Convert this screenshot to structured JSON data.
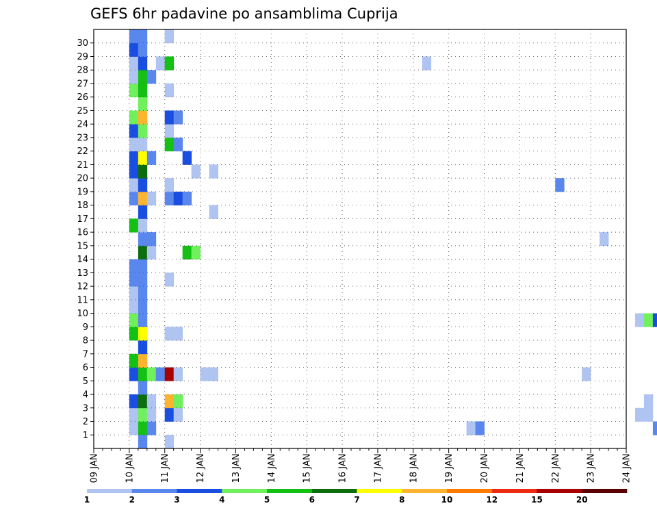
{
  "chart_data": {
    "type": "heatmap",
    "title": "GEFS 6hr padavine po ansamblima Cuprija",
    "x_tick_labels": [
      "09 JAN",
      "10 JAN",
      "11 JAN",
      "12 JAN",
      "13 JAN",
      "14 JAN",
      "15 JAN",
      "16 JAN",
      "17 JAN",
      "18 JAN",
      "19 JAN",
      "20 JAN",
      "21 JAN",
      "22 JAN",
      "23 JAN",
      "24 JAN"
    ],
    "y_tick_labels": [
      "1",
      "2",
      "3",
      "4",
      "5",
      "6",
      "7",
      "8",
      "9",
      "10",
      "11",
      "12",
      "13",
      "14",
      "15",
      "16",
      "17",
      "18",
      "19",
      "20",
      "21",
      "22",
      "23",
      "24",
      "25",
      "26",
      "27",
      "28",
      "29",
      "30"
    ],
    "x_range_days": [
      0,
      15
    ],
    "y_range": [
      0,
      30
    ],
    "time_step_days": 0.25,
    "ensemble_members": 31,
    "grid": "dotted",
    "colorbar": {
      "labels": [
        "1",
        "2",
        "3",
        "4",
        "5",
        "6",
        "7",
        "8",
        "10",
        "12",
        "15",
        "20"
      ],
      "colors": [
        "#b0c4f2",
        "#5a87ee",
        "#1a4ee0",
        "#6ff05c",
        "#13c013",
        "#0b6d0b",
        "#ffff00",
        "#ffb430",
        "#ff7a00",
        "#ee2a10",
        "#a80000",
        "#5a0000"
      ]
    },
    "cells": [
      {
        "m": 1,
        "s": [
          [
            4,
            0
          ],
          [
            5,
            4
          ],
          [
            6,
            1
          ],
          [
            42,
            0
          ],
          [
            43,
            1
          ],
          [
            63,
            1
          ],
          [
            69,
            0
          ],
          [
            70,
            1
          ],
          [
            72,
            5
          ],
          [
            73,
            3
          ],
          [
            74,
            0
          ],
          [
            78,
            0
          ],
          [
            80,
            1
          ],
          [
            81,
            1
          ]
        ]
      },
      {
        "m": 2,
        "s": [
          [
            4,
            0
          ],
          [
            5,
            3
          ],
          [
            6,
            0
          ],
          [
            8,
            2
          ],
          [
            9,
            0
          ],
          [
            61,
            0
          ],
          [
            62,
            0
          ],
          [
            76,
            0
          ],
          [
            77,
            7
          ],
          [
            78,
            7
          ]
        ]
      },
      {
        "m": 3,
        "s": [
          [
            4,
            2
          ],
          [
            5,
            5
          ],
          [
            6,
            0
          ],
          [
            8,
            7
          ],
          [
            9,
            3
          ],
          [
            62,
            0
          ],
          [
            69,
            0
          ],
          [
            70,
            1
          ],
          [
            71,
            2
          ],
          [
            72,
            1
          ],
          [
            73,
            2
          ],
          [
            74,
            2
          ]
        ]
      },
      {
        "m": 4,
        "s": [
          [
            5,
            1
          ],
          [
            75,
            0
          ],
          [
            76,
            1
          ],
          [
            82,
            5
          ],
          [
            83,
            7
          ]
        ]
      },
      {
        "m": 5,
        "s": [
          [
            4,
            2
          ],
          [
            5,
            4
          ],
          [
            6,
            3
          ],
          [
            7,
            1
          ],
          [
            8,
            10
          ],
          [
            9,
            0
          ],
          [
            12,
            0
          ],
          [
            13,
            0
          ],
          [
            55,
            0
          ],
          [
            80,
            0
          ],
          [
            81,
            0
          ],
          [
            82,
            1
          ],
          [
            83,
            1
          ]
        ]
      },
      {
        "m": 6,
        "s": [
          [
            4,
            4
          ],
          [
            5,
            7
          ]
        ]
      },
      {
        "m": 7,
        "s": [
          [
            5,
            2
          ],
          [
            80,
            0
          ],
          [
            83,
            1
          ]
        ]
      },
      {
        "m": 8,
        "s": [
          [
            4,
            4
          ],
          [
            5,
            6
          ],
          [
            8,
            0
          ],
          [
            9,
            0
          ],
          [
            69,
            1
          ],
          [
            70,
            2
          ],
          [
            71,
            2
          ],
          [
            72,
            3
          ],
          [
            73,
            4
          ],
          [
            74,
            3
          ],
          [
            75,
            4
          ],
          [
            76,
            1
          ],
          [
            77,
            0
          ]
        ]
      },
      {
        "m": 9,
        "s": [
          [
            4,
            3
          ],
          [
            5,
            1
          ],
          [
            61,
            0
          ],
          [
            62,
            3
          ],
          [
            63,
            2
          ],
          [
            64,
            0
          ],
          [
            65,
            0
          ]
        ]
      },
      {
        "m": 10,
        "s": [
          [
            4,
            0
          ],
          [
            5,
            1
          ]
        ]
      },
      {
        "m": 11,
        "s": [
          [
            4,
            0
          ],
          [
            5,
            1
          ]
        ]
      },
      {
        "m": 12,
        "s": [
          [
            4,
            1
          ],
          [
            5,
            1
          ],
          [
            8,
            0
          ],
          [
            75,
            0
          ],
          [
            76,
            0
          ],
          [
            77,
            1
          ],
          [
            78,
            0
          ]
        ]
      },
      {
        "m": 13,
        "s": [
          [
            4,
            1
          ],
          [
            5,
            1
          ]
        ]
      },
      {
        "m": 14,
        "s": [
          [
            5,
            5
          ],
          [
            6,
            0
          ],
          [
            10,
            4
          ],
          [
            11,
            3
          ]
        ]
      },
      {
        "m": 15,
        "s": [
          [
            5,
            1
          ],
          [
            6,
            1
          ],
          [
            57,
            0
          ],
          [
            72,
            2
          ],
          [
            73,
            2
          ],
          [
            74,
            2
          ],
          [
            75,
            1
          ],
          [
            76,
            1
          ],
          [
            77,
            0
          ]
        ]
      },
      {
        "m": 16,
        "s": [
          [
            4,
            4
          ],
          [
            5,
            0
          ],
          [
            69,
            0
          ],
          [
            70,
            1
          ],
          [
            74,
            1
          ],
          [
            75,
            0
          ],
          [
            76,
            0
          ],
          [
            77,
            0
          ],
          [
            78,
            0
          ],
          [
            79,
            0
          ],
          [
            80,
            0
          ]
        ]
      },
      {
        "m": 17,
        "s": [
          [
            5,
            2
          ],
          [
            13,
            0
          ]
        ]
      },
      {
        "m": 18,
        "s": [
          [
            4,
            1
          ],
          [
            5,
            7
          ],
          [
            6,
            0
          ],
          [
            8,
            1
          ],
          [
            9,
            2
          ],
          [
            10,
            1
          ]
        ]
      },
      {
        "m": 19,
        "s": [
          [
            4,
            0
          ],
          [
            5,
            2
          ],
          [
            8,
            0
          ],
          [
            52,
            1
          ]
        ]
      },
      {
        "m": 20,
        "s": [
          [
            4,
            2
          ],
          [
            5,
            5
          ],
          [
            11,
            0
          ],
          [
            13,
            0
          ]
        ]
      },
      {
        "m": 21,
        "s": [
          [
            4,
            2
          ],
          [
            5,
            6
          ],
          [
            6,
            1
          ],
          [
            10,
            2
          ],
          [
            79,
            0
          ]
        ]
      },
      {
        "m": 22,
        "s": [
          [
            4,
            0
          ],
          [
            5,
            0
          ],
          [
            8,
            4
          ],
          [
            9,
            1
          ],
          [
            84,
            0
          ]
        ]
      },
      {
        "m": 23,
        "s": [
          [
            4,
            2
          ],
          [
            5,
            3
          ],
          [
            8,
            0
          ],
          [
            81,
            2
          ],
          [
            82,
            5
          ]
        ]
      },
      {
        "m": 24,
        "s": [
          [
            4,
            3
          ],
          [
            5,
            7
          ],
          [
            8,
            2
          ],
          [
            9,
            1
          ],
          [
            84,
            0
          ]
        ]
      },
      {
        "m": 25,
        "s": [
          [
            5,
            3
          ],
          [
            71,
            1
          ]
        ]
      },
      {
        "m": 26,
        "s": [
          [
            4,
            3
          ],
          [
            5,
            4
          ],
          [
            8,
            0
          ]
        ]
      },
      {
        "m": 27,
        "s": [
          [
            4,
            0
          ],
          [
            5,
            4
          ],
          [
            6,
            1
          ],
          [
            67,
            0
          ],
          [
            84,
            0
          ]
        ]
      },
      {
        "m": 28,
        "s": [
          [
            4,
            0
          ],
          [
            5,
            2
          ],
          [
            7,
            0
          ],
          [
            8,
            4
          ],
          [
            37,
            0
          ],
          [
            73,
            0
          ],
          [
            74,
            0
          ],
          [
            75,
            0
          ],
          [
            76,
            0
          ],
          [
            77,
            0
          ],
          [
            78,
            0
          ],
          [
            79,
            0
          ],
          [
            80,
            0
          ],
          [
            81,
            7
          ],
          [
            82,
            2
          ]
        ]
      },
      {
        "m": 29,
        "s": [
          [
            4,
            2
          ],
          [
            5,
            1
          ],
          [
            69,
            4
          ],
          [
            84,
            0
          ],
          [
            85,
            4
          ]
        ]
      },
      {
        "m": 30,
        "s": [
          [
            4,
            1
          ],
          [
            5,
            1
          ],
          [
            8,
            0
          ],
          [
            75,
            2
          ],
          [
            76,
            3
          ],
          [
            77,
            0
          ]
        ]
      },
      {
        "m": 0,
        "s": [
          [
            5,
            1
          ],
          [
            8,
            0
          ],
          [
            72,
            7
          ],
          [
            74,
            0
          ]
        ]
      }
    ]
  }
}
